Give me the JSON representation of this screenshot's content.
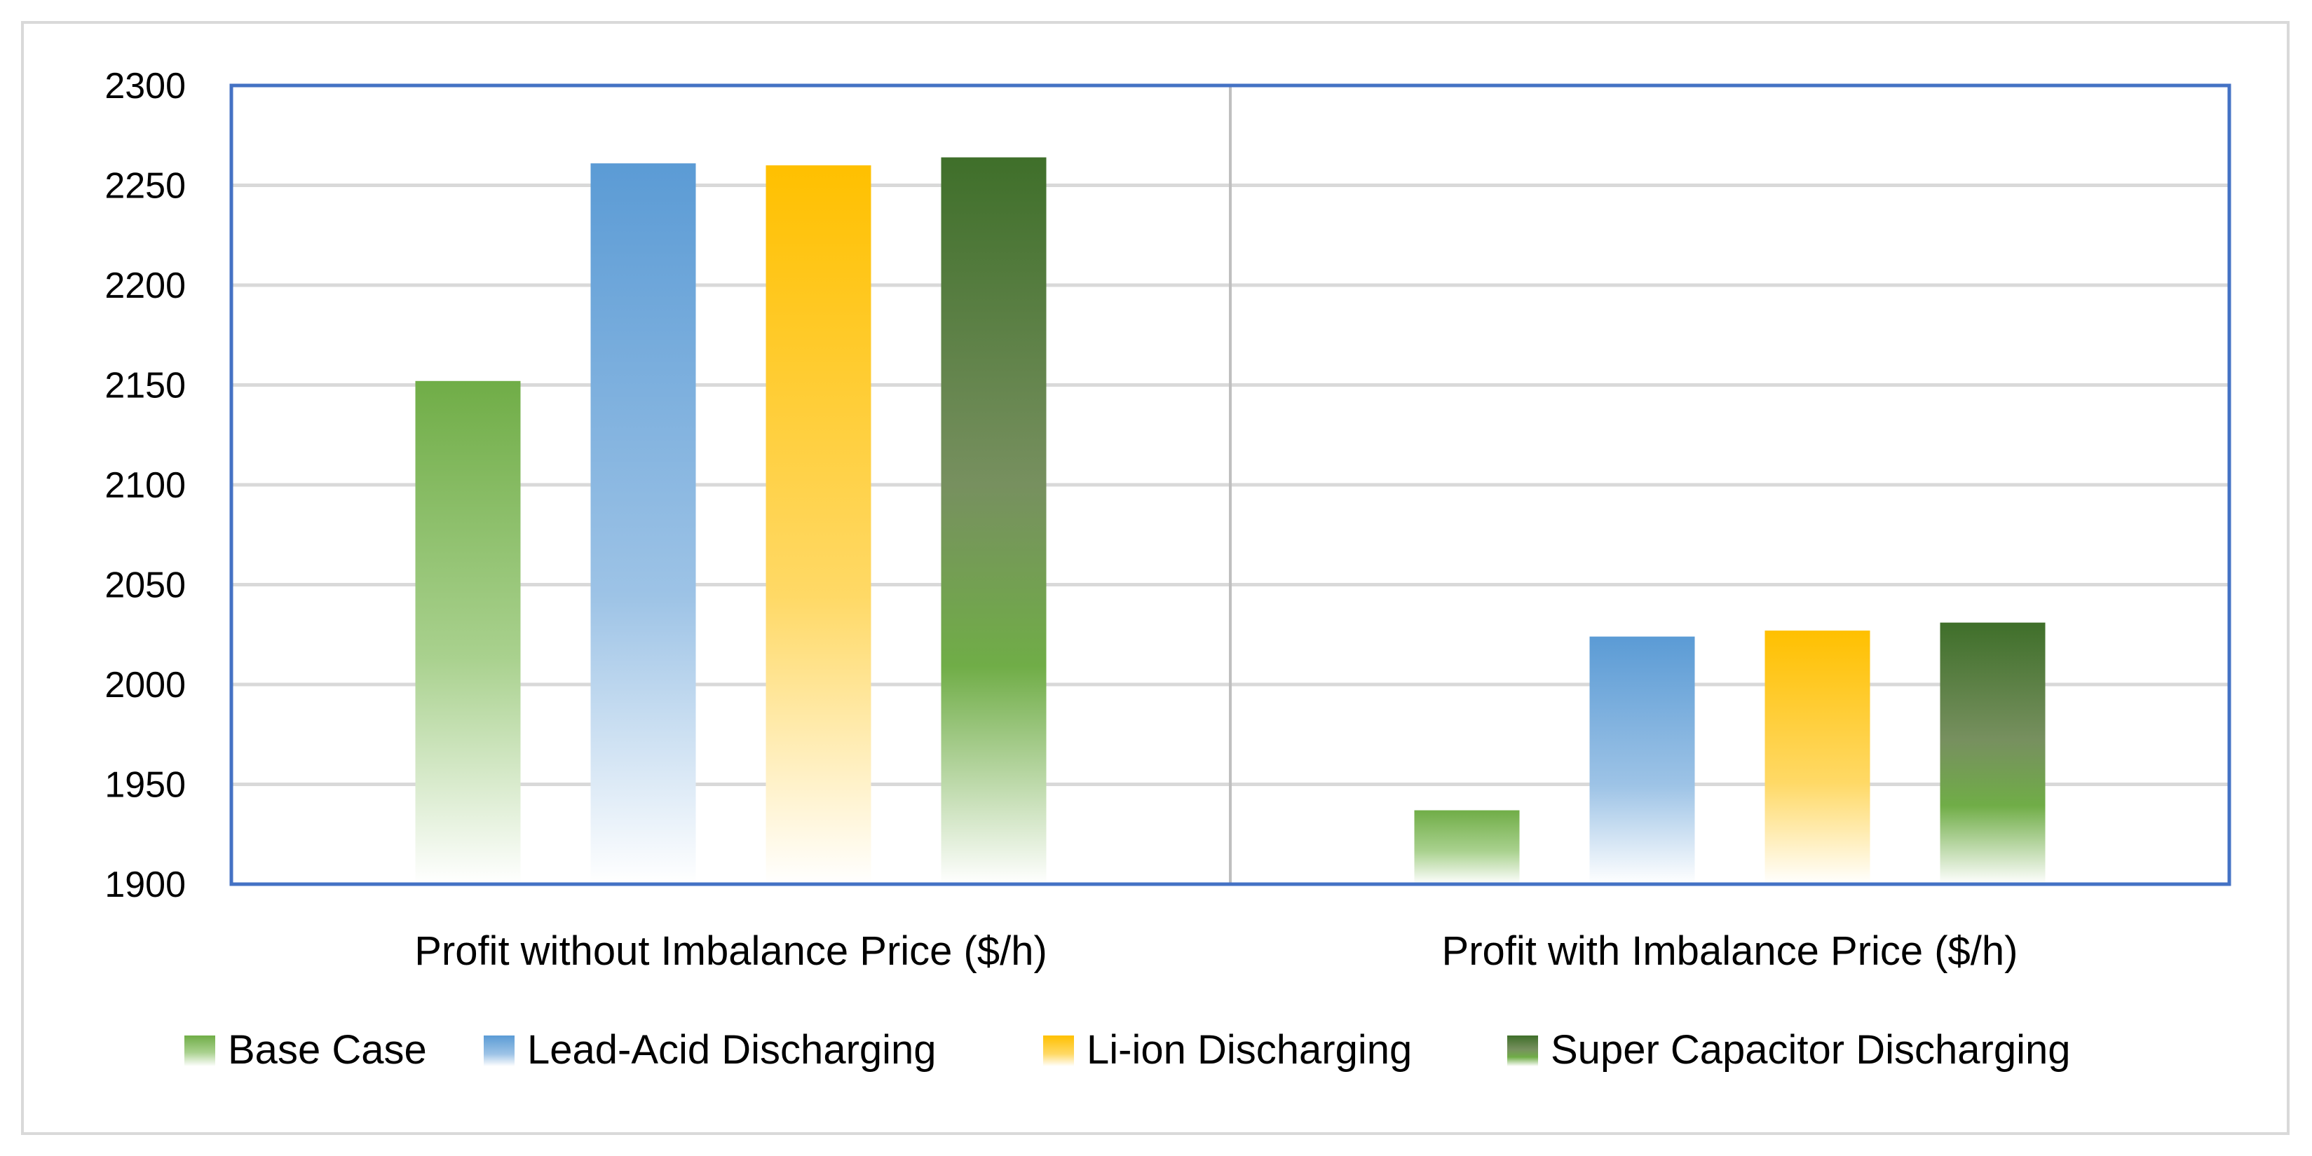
{
  "chart_data": {
    "type": "bar",
    "title": "",
    "xlabel": "",
    "ylabel": "",
    "ylim": [
      1900,
      2300
    ],
    "yticks": [
      1900,
      1950,
      2000,
      2050,
      2100,
      2150,
      2200,
      2250,
      2300
    ],
    "categories": [
      "Profit without Imbalance Price ($/h)",
      "Profit with Imbalance Price ($/h)"
    ],
    "series": [
      {
        "name": "Base Case",
        "values": [
          2152,
          1937
        ],
        "color": "#70ad47"
      },
      {
        "name": "Lead-Acid Discharging",
        "values": [
          2261,
          2024
        ],
        "color": "#5b9bd5"
      },
      {
        "name": "Li-ion Discharging",
        "values": [
          2260,
          2027
        ],
        "color": "#ffc000"
      },
      {
        "name": "Super Capacitor Discharging",
        "values": [
          2264,
          2031
        ],
        "color": "#3f6f2a"
      }
    ],
    "grid": true,
    "legend_position": "bottom"
  }
}
